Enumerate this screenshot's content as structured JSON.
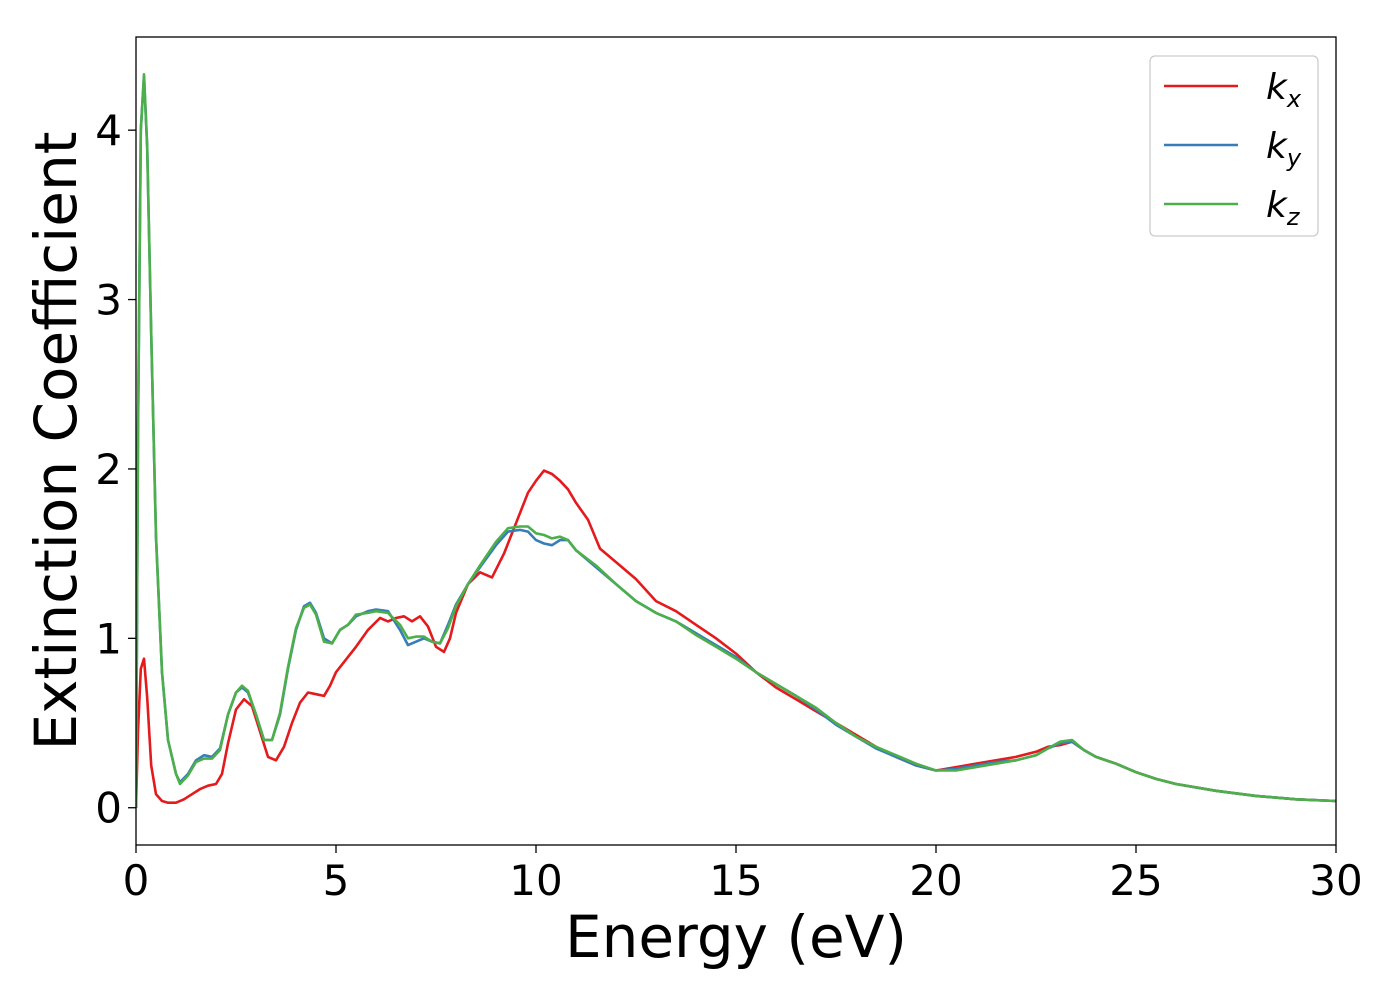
{
  "chart_data": {
    "type": "line",
    "xlabel": "Energy (eV)",
    "ylabel": "Extinction Coefficient",
    "xlim": [
      0,
      30
    ],
    "ylim": [
      -0.22,
      4.55
    ],
    "xticks": [
      0,
      5,
      10,
      15,
      20,
      25,
      30
    ],
    "yticks": [
      0,
      1,
      2,
      3,
      4
    ],
    "xtick_labels": [
      "0",
      "5",
      "10",
      "15",
      "20",
      "25",
      "30"
    ],
    "ytick_labels": [
      "0",
      "1",
      "2",
      "3",
      "4"
    ],
    "grid": false,
    "legend_position": "top-right",
    "series": [
      {
        "name": "k_x",
        "base": "k",
        "sub": "x",
        "color": "#e41a1c",
        "x": [
          0,
          0.05,
          0.12,
          0.2,
          0.28,
          0.38,
          0.5,
          0.65,
          0.8,
          1.0,
          1.2,
          1.4,
          1.6,
          1.8,
          2.0,
          2.15,
          2.3,
          2.5,
          2.7,
          2.9,
          3.1,
          3.3,
          3.5,
          3.7,
          3.9,
          4.1,
          4.3,
          4.5,
          4.7,
          4.85,
          5.0,
          5.2,
          5.5,
          5.8,
          6.1,
          6.3,
          6.5,
          6.7,
          6.9,
          7.1,
          7.3,
          7.5,
          7.7,
          7.85,
          8.0,
          8.3,
          8.6,
          8.9,
          9.2,
          9.5,
          9.8,
          10.0,
          10.2,
          10.4,
          10.6,
          10.8,
          11.0,
          11.3,
          11.6,
          12.0,
          12.5,
          13.0,
          13.5,
          14.0,
          14.5,
          15.0,
          15.5,
          16.0,
          16.5,
          17.0,
          17.5,
          18.0,
          18.5,
          19.0,
          19.5,
          20.0,
          20.5,
          21.0,
          21.5,
          22.0,
          22.5,
          22.8,
          23.1,
          23.4,
          23.7,
          24.0,
          24.5,
          25.0,
          25.5,
          26.0,
          27.0,
          28.0,
          29.0,
          30.0
        ],
        "values": [
          0.0,
          0.45,
          0.82,
          0.88,
          0.65,
          0.25,
          0.08,
          0.04,
          0.03,
          0.03,
          0.05,
          0.08,
          0.11,
          0.13,
          0.14,
          0.2,
          0.38,
          0.58,
          0.64,
          0.6,
          0.45,
          0.3,
          0.28,
          0.36,
          0.5,
          0.62,
          0.68,
          0.67,
          0.66,
          0.72,
          0.8,
          0.86,
          0.95,
          1.05,
          1.12,
          1.1,
          1.12,
          1.13,
          1.1,
          1.13,
          1.07,
          0.95,
          0.92,
          1.0,
          1.15,
          1.32,
          1.39,
          1.36,
          1.5,
          1.68,
          1.86,
          1.93,
          1.99,
          1.97,
          1.93,
          1.88,
          1.8,
          1.7,
          1.53,
          1.45,
          1.35,
          1.22,
          1.16,
          1.08,
          1.0,
          0.91,
          0.8,
          0.71,
          0.64,
          0.57,
          0.5,
          0.43,
          0.36,
          0.3,
          0.25,
          0.22,
          0.24,
          0.26,
          0.28,
          0.3,
          0.33,
          0.36,
          0.37,
          0.39,
          0.34,
          0.3,
          0.26,
          0.21,
          0.17,
          0.14,
          0.1,
          0.07,
          0.05,
          0.04
        ]
      },
      {
        "name": "k_y",
        "base": "k",
        "sub": "y",
        "color": "#377eb8",
        "x": [
          0,
          0.05,
          0.12,
          0.2,
          0.28,
          0.38,
          0.5,
          0.65,
          0.8,
          1.0,
          1.1,
          1.3,
          1.5,
          1.7,
          1.9,
          2.1,
          2.3,
          2.5,
          2.65,
          2.8,
          3.0,
          3.2,
          3.4,
          3.6,
          3.8,
          4.0,
          4.2,
          4.35,
          4.5,
          4.7,
          4.9,
          5.1,
          5.3,
          5.5,
          5.8,
          6.0,
          6.3,
          6.6,
          6.8,
          7.0,
          7.2,
          7.4,
          7.6,
          7.8,
          8.0,
          8.3,
          8.6,
          9.0,
          9.3,
          9.6,
          9.8,
          10.0,
          10.2,
          10.4,
          10.6,
          10.8,
          11.0,
          11.5,
          12.0,
          12.5,
          13.0,
          13.5,
          14.0,
          14.5,
          15.0,
          15.5,
          16.0,
          16.5,
          17.0,
          17.5,
          18.0,
          18.5,
          19.0,
          19.5,
          20.0,
          20.5,
          21.0,
          21.5,
          22.0,
          22.5,
          22.8,
          23.1,
          23.4,
          23.7,
          24.0,
          24.5,
          25.0,
          25.5,
          26.0,
          27.0,
          28.0,
          29.0,
          30.0
        ],
        "values": [
          0.0,
          2.2,
          4.0,
          4.32,
          3.9,
          2.8,
          1.6,
          0.8,
          0.4,
          0.2,
          0.15,
          0.2,
          0.28,
          0.31,
          0.3,
          0.35,
          0.55,
          0.68,
          0.71,
          0.68,
          0.55,
          0.4,
          0.4,
          0.55,
          0.82,
          1.05,
          1.19,
          1.21,
          1.15,
          1.0,
          0.97,
          1.05,
          1.08,
          1.13,
          1.16,
          1.17,
          1.16,
          1.05,
          0.96,
          0.98,
          1.0,
          0.98,
          0.97,
          1.08,
          1.2,
          1.32,
          1.42,
          1.55,
          1.63,
          1.64,
          1.63,
          1.58,
          1.56,
          1.55,
          1.58,
          1.58,
          1.52,
          1.42,
          1.32,
          1.22,
          1.15,
          1.1,
          1.03,
          0.96,
          0.89,
          0.8,
          0.73,
          0.66,
          0.58,
          0.49,
          0.42,
          0.35,
          0.3,
          0.25,
          0.22,
          0.23,
          0.25,
          0.27,
          0.28,
          0.31,
          0.35,
          0.38,
          0.39,
          0.34,
          0.3,
          0.26,
          0.21,
          0.17,
          0.14,
          0.1,
          0.07,
          0.05,
          0.04
        ]
      },
      {
        "name": "k_z",
        "base": "k",
        "sub": "z",
        "color": "#4daf4a",
        "x": [
          0,
          0.05,
          0.12,
          0.2,
          0.28,
          0.38,
          0.5,
          0.65,
          0.8,
          1.0,
          1.1,
          1.3,
          1.5,
          1.7,
          1.9,
          2.1,
          2.3,
          2.5,
          2.65,
          2.8,
          3.0,
          3.2,
          3.4,
          3.6,
          3.8,
          4.0,
          4.2,
          4.35,
          4.5,
          4.7,
          4.9,
          5.1,
          5.3,
          5.5,
          5.8,
          6.0,
          6.3,
          6.6,
          6.8,
          7.0,
          7.2,
          7.4,
          7.6,
          7.8,
          8.0,
          8.3,
          8.6,
          9.0,
          9.3,
          9.6,
          9.8,
          10.0,
          10.2,
          10.4,
          10.6,
          10.8,
          11.0,
          11.5,
          12.0,
          12.5,
          13.0,
          13.5,
          14.0,
          14.5,
          15.0,
          15.5,
          16.0,
          16.5,
          17.0,
          17.5,
          18.0,
          18.5,
          19.0,
          19.5,
          20.0,
          20.5,
          21.0,
          21.5,
          22.0,
          22.5,
          22.8,
          23.1,
          23.4,
          23.7,
          24.0,
          24.5,
          25.0,
          25.5,
          26.0,
          27.0,
          28.0,
          29.0,
          30.0
        ],
        "values": [
          0.0,
          2.2,
          4.0,
          4.33,
          3.9,
          2.8,
          1.6,
          0.8,
          0.4,
          0.2,
          0.14,
          0.19,
          0.27,
          0.29,
          0.29,
          0.34,
          0.55,
          0.68,
          0.72,
          0.69,
          0.55,
          0.4,
          0.4,
          0.56,
          0.83,
          1.06,
          1.18,
          1.2,
          1.14,
          0.98,
          0.97,
          1.05,
          1.08,
          1.14,
          1.15,
          1.16,
          1.15,
          1.08,
          1.0,
          1.01,
          1.01,
          0.98,
          0.97,
          1.06,
          1.19,
          1.32,
          1.43,
          1.57,
          1.65,
          1.66,
          1.66,
          1.62,
          1.61,
          1.59,
          1.6,
          1.58,
          1.52,
          1.43,
          1.32,
          1.22,
          1.15,
          1.1,
          1.02,
          0.95,
          0.88,
          0.8,
          0.73,
          0.66,
          0.59,
          0.5,
          0.42,
          0.36,
          0.31,
          0.26,
          0.22,
          0.22,
          0.24,
          0.26,
          0.28,
          0.31,
          0.35,
          0.39,
          0.4,
          0.34,
          0.3,
          0.26,
          0.21,
          0.17,
          0.14,
          0.1,
          0.07,
          0.05,
          0.04
        ]
      }
    ]
  }
}
